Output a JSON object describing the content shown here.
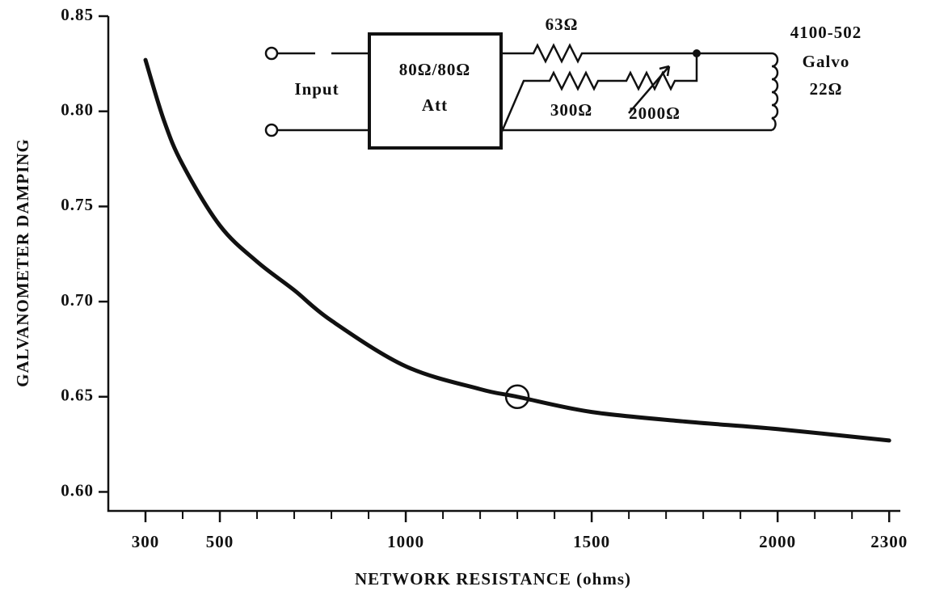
{
  "chart_data": {
    "type": "line",
    "x_label": "NETWORK RESISTANCE (ohms)",
    "y_label": "GALVANOMETER DAMPING",
    "x": [
      300,
      350,
      400,
      500,
      600,
      700,
      800,
      1000,
      1200,
      1300,
      1500,
      1750,
      2000,
      2300
    ],
    "values": [
      0.827,
      0.795,
      0.772,
      0.74,
      0.721,
      0.706,
      0.69,
      0.666,
      0.654,
      0.65,
      0.642,
      0.637,
      0.633,
      0.627
    ],
    "color": "#111111",
    "xlim": [
      200,
      2330
    ],
    "ylim": [
      0.59,
      0.85
    ],
    "xticks": [
      300,
      500,
      1000,
      1500,
      2000,
      2300
    ],
    "x_minor_ticks": [
      400,
      600,
      700,
      800,
      900,
      1100,
      1200,
      1300,
      1400,
      1600,
      1700,
      1800,
      1900,
      2100,
      2200
    ],
    "yticks": [
      0.85,
      {
        "value": 0.8,
        "label": "0.80"
      },
      0.75,
      {
        "value": 0.7,
        "label": "0.70"
      },
      0.65,
      {
        "value": 0.6,
        "label": "0.60"
      }
    ],
    "marker": {
      "x": 1300,
      "y": 0.65
    },
    "inset_labels": [
      "Input",
      "80Ω/80Ω",
      "Att",
      "63Ω",
      "300Ω",
      "2000Ω",
      "4100-502",
      "Galvo",
      "22Ω"
    ]
  }
}
